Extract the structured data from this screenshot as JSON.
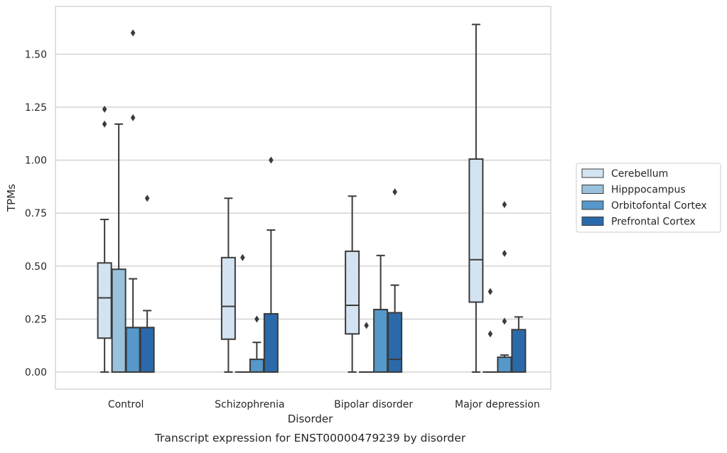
{
  "chart_data": {
    "type": "box",
    "caption": "Transcript expression for ENST00000479239 by disorder",
    "xlabel": "Disorder",
    "ylabel": "TPMs",
    "ylim": [
      -0.08,
      1.69
    ],
    "yticks": [
      "0.00",
      "0.25",
      "0.50",
      "0.75",
      "1.00",
      "1.25",
      "1.50"
    ],
    "ytick_values": [
      0,
      0.25,
      0.5,
      0.75,
      1.0,
      1.25,
      1.5
    ],
    "grid": "horizontal",
    "legend_position": "right",
    "categories": [
      "Control",
      "Schizophrenia",
      "Bipolar disorder",
      "Major depression"
    ],
    "series": [
      {
        "name": "Cerebellum",
        "color": "#d4e3f2",
        "boxes": [
          {
            "min": 0.0,
            "q1": 0.16,
            "median": 0.35,
            "q3": 0.515,
            "max": 0.72,
            "outliers": [
              1.17,
              1.24
            ]
          },
          {
            "min": 0.0,
            "q1": 0.155,
            "median": 0.31,
            "q3": 0.54,
            "max": 0.82,
            "outliers": []
          },
          {
            "min": 0.0,
            "q1": 0.18,
            "median": 0.315,
            "q3": 0.57,
            "max": 0.83,
            "outliers": []
          },
          {
            "min": 0.0,
            "q1": 0.33,
            "median": 0.53,
            "q3": 1.005,
            "max": 1.64,
            "outliers": []
          }
        ]
      },
      {
        "name": "Hipppocampus",
        "color": "#9ac2dd",
        "boxes": [
          {
            "min": 0.0,
            "q1": 0.0,
            "median": 0.0,
            "q3": 0.485,
            "max": 1.17,
            "outliers": []
          },
          {
            "min": 0.0,
            "q1": 0.0,
            "median": 0.0,
            "q3": 0.0,
            "max": 0.0,
            "outliers": [
              0.54
            ]
          },
          {
            "min": 0.0,
            "q1": 0.0,
            "median": 0.0,
            "q3": 0.0,
            "max": 0.0,
            "outliers": [
              0.22
            ]
          },
          {
            "min": 0.0,
            "q1": 0.0,
            "median": 0.0,
            "q3": 0.0,
            "max": 0.0,
            "outliers": [
              0.18,
              0.38
            ]
          }
        ]
      },
      {
        "name": "Orbitofontal Cortex",
        "color": "#5598c9",
        "boxes": [
          {
            "min": 0.0,
            "q1": 0.0,
            "median": 0.21,
            "q3": 0.21,
            "max": 0.44,
            "outliers": [
              1.2,
              1.6
            ]
          },
          {
            "min": 0.0,
            "q1": 0.0,
            "median": 0.0,
            "q3": 0.06,
            "max": 0.14,
            "outliers": [
              0.25
            ]
          },
          {
            "min": 0.0,
            "q1": 0.0,
            "median": 0.295,
            "q3": 0.295,
            "max": 0.55,
            "outliers": []
          },
          {
            "min": 0.0,
            "q1": 0.0,
            "median": 0.0,
            "q3": 0.07,
            "max": 0.08,
            "outliers": [
              0.24,
              0.56,
              0.79
            ]
          }
        ]
      },
      {
        "name": "Prefrontal Cortex",
        "color": "#2b6aaa",
        "boxes": [
          {
            "min": 0.0,
            "q1": 0.0,
            "median": 0.21,
            "q3": 0.21,
            "max": 0.29,
            "outliers": [
              0.82
            ]
          },
          {
            "min": 0.0,
            "q1": 0.0,
            "median": 0.0,
            "q3": 0.275,
            "max": 0.67,
            "outliers": [
              1.0
            ]
          },
          {
            "min": 0.0,
            "q1": 0.0,
            "median": 0.06,
            "q3": 0.28,
            "max": 0.41,
            "outliers": [
              0.85
            ]
          },
          {
            "min": 0.0,
            "q1": 0.0,
            "median": 0.0,
            "q3": 0.2,
            "max": 0.26,
            "outliers": []
          }
        ]
      }
    ]
  }
}
